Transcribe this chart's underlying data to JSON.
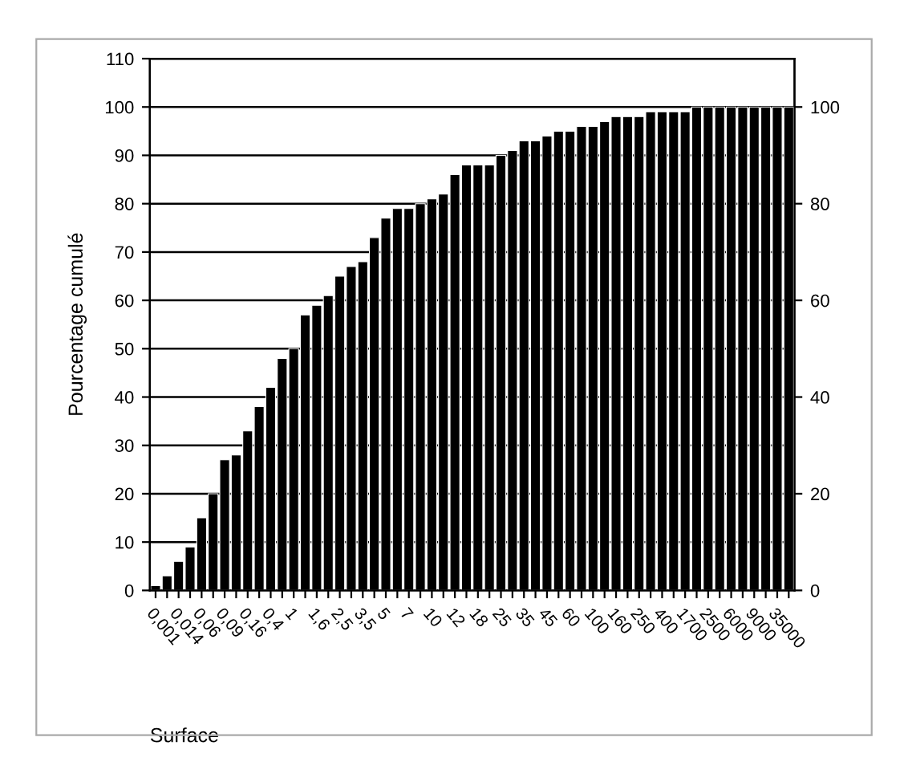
{
  "chart_data": {
    "type": "bar",
    "xlabel": "Surface",
    "ylabel": "Pourcentage cumulé",
    "color": "#000000",
    "categories": [
      "0,001",
      null,
      "0,014",
      null,
      "0,06",
      null,
      "0,09",
      null,
      "0,16",
      null,
      "0,4",
      null,
      "1",
      null,
      "1,6",
      null,
      "2,5",
      null,
      "3,5",
      null,
      "5",
      null,
      "7",
      null,
      "10",
      null,
      "12",
      null,
      "18",
      null,
      "25",
      null,
      "35",
      null,
      "45",
      null,
      "60",
      null,
      "100",
      null,
      "160",
      null,
      "250",
      null,
      "400",
      null,
      "1700",
      null,
      "2500",
      null,
      "6000",
      null,
      "9000",
      null,
      "35000",
      null
    ],
    "values": [
      1,
      3,
      6,
      9,
      15,
      20,
      27,
      28,
      33,
      38,
      42,
      48,
      50,
      57,
      59,
      61,
      65,
      67,
      68,
      73,
      77,
      79,
      79,
      80,
      81,
      82,
      86,
      88,
      88,
      88,
      90,
      91,
      93,
      93,
      94,
      95,
      95,
      96,
      96,
      97,
      98,
      98,
      98,
      99,
      99,
      99,
      99,
      100,
      100,
      100,
      100,
      100,
      100,
      100,
      100,
      100
    ],
    "ylim": [
      0,
      110
    ],
    "yticks": [
      0,
      10,
      20,
      30,
      40,
      50,
      60,
      70,
      80,
      90,
      100,
      110
    ],
    "y2lim": [
      0,
      110
    ],
    "y2ticks": [
      0,
      20,
      40,
      60,
      80,
      100
    ],
    "grid": "y"
  }
}
